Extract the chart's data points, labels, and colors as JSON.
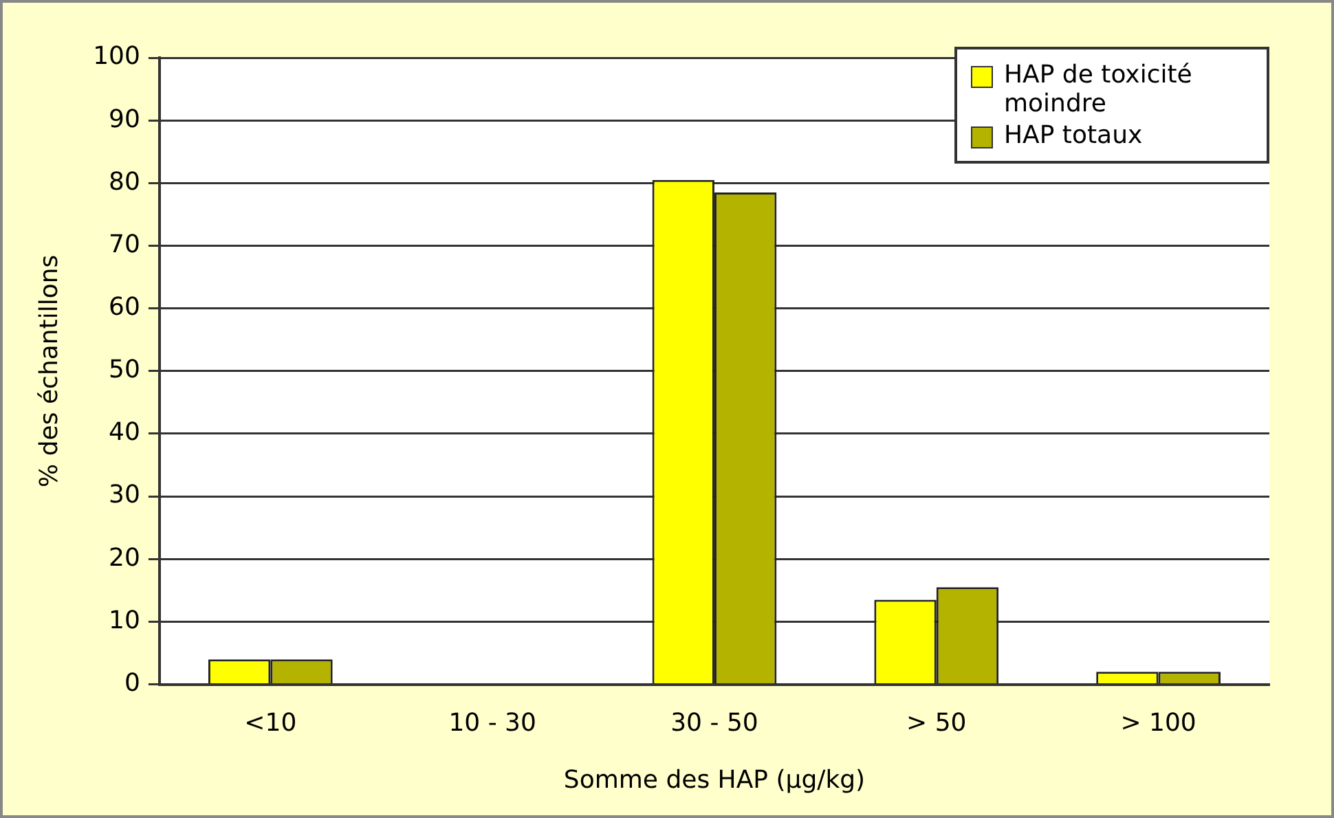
{
  "chart_data": {
    "type": "bar",
    "xlabel": "Somme des HAP (µg/kg)",
    "ylabel": "% des échantillons",
    "categories": [
      "<10",
      "10 - 30",
      "30 - 50",
      "> 50",
      "> 100"
    ],
    "series": [
      {
        "name": "HAP de toxicité moindre",
        "color": "#ffff00",
        "values": [
          4,
          0,
          80.5,
          13.5,
          2
        ]
      },
      {
        "name": "HAP totaux",
        "color": "#b3b300",
        "values": [
          4,
          0,
          78.5,
          15.5,
          2
        ]
      }
    ],
    "ylim": [
      0,
      100
    ],
    "yticks": [
      0,
      10,
      20,
      30,
      40,
      50,
      60,
      70,
      80,
      90,
      100
    ],
    "grid": "y",
    "legend": "top right"
  }
}
